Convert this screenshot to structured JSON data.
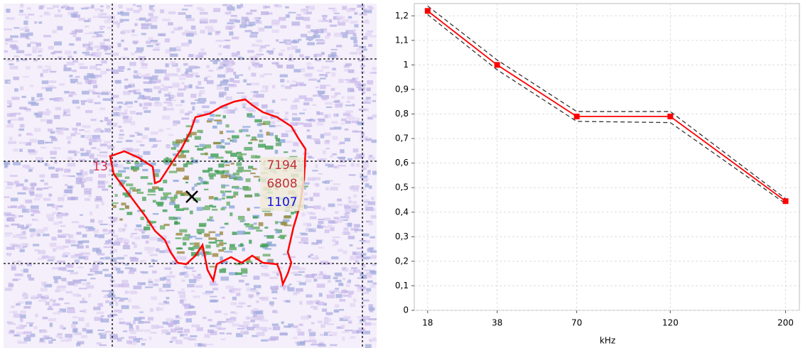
{
  "echogram": {
    "labels": {
      "region_id": "13",
      "value_a": "7194",
      "value_b": "6808",
      "value_c": "1107"
    }
  },
  "chart_data": {
    "type": "line",
    "xlabel": "kHz",
    "xscale": "sqrt",
    "x": [
      18,
      38,
      70,
      120,
      200
    ],
    "xlim": [
      15,
      211
    ],
    "xticks": [
      18,
      38,
      70,
      120,
      200
    ],
    "ylim": [
      0,
      1.25
    ],
    "yticks": [
      0,
      {
        "value": 0.1,
        "label": "0,1"
      },
      {
        "value": 0.2,
        "label": "0,2"
      },
      {
        "value": 0.3,
        "label": "0,3"
      },
      {
        "value": 0.4,
        "label": "0,4"
      },
      {
        "value": 0.5,
        "label": "0,5"
      },
      {
        "value": 0.6,
        "label": "0,6"
      },
      {
        "value": 0.7,
        "label": "0,7"
      },
      {
        "value": 0.8,
        "label": "0,8"
      },
      {
        "value": 0.9,
        "label": "0,9"
      },
      1,
      {
        "value": 1.1,
        "label": "1,1"
      },
      {
        "value": 1.2,
        "label": "1,2"
      }
    ],
    "grid": true,
    "series": [
      {
        "color": "#333333",
        "line_style": "dashed",
        "values": [
          1.24,
          1.02,
          0.81,
          0.81,
          0.455
        ]
      },
      {
        "color": "#333333",
        "line_style": "dashed",
        "values": [
          1.205,
          0.98,
          0.77,
          0.765,
          0.435
        ]
      },
      {
        "color": "#ff0000",
        "line_style": "solid",
        "marker": "square",
        "values": [
          1.22,
          1.0,
          0.79,
          0.79,
          0.445
        ]
      }
    ]
  }
}
